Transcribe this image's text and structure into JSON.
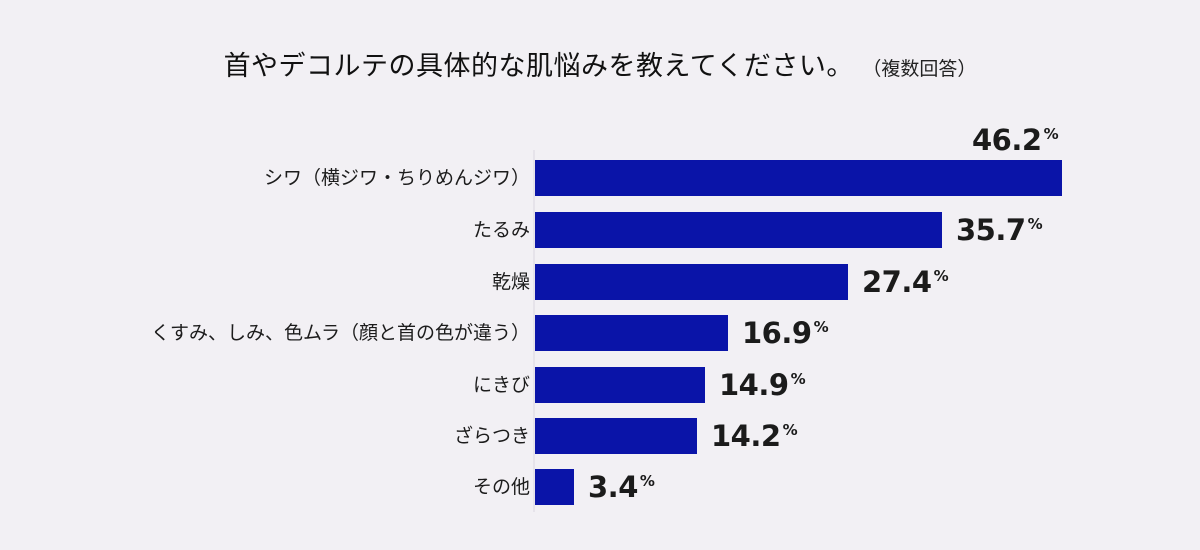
{
  "title": {
    "main": "首やデコルテの具体的な肌悩みを教えてください。",
    "sub": "（複数回答）"
  },
  "colors": {
    "bar": "#0a14a8",
    "background": "#f2f0f4"
  },
  "rows": [
    {
      "label": "シワ（横ジワ・ちりめんジワ）",
      "value": "46.2",
      "unit": "%"
    },
    {
      "label": "たるみ",
      "value": "35.7",
      "unit": "%"
    },
    {
      "label": "乾燥",
      "value": "27.4",
      "unit": "%"
    },
    {
      "label": "くすみ、しみ、色ムラ（顔と首の色が違う）",
      "value": "16.9",
      "unit": "%"
    },
    {
      "label": "にきび",
      "value": "14.9",
      "unit": "%"
    },
    {
      "label": "ざらつき",
      "value": "14.2",
      "unit": "%"
    },
    {
      "label": "その他",
      "value": "3.4",
      "unit": "%"
    }
  ],
  "chart_data": {
    "type": "bar",
    "orientation": "horizontal",
    "title": "首やデコルテの具体的な肌悩みを教えてください。（複数回答）",
    "categories": [
      "シワ（横ジワ・ちりめんジワ）",
      "たるみ",
      "乾燥",
      "くすみ、しみ、色ムラ（顔と首の色が違う）",
      "にきび",
      "ざらつき",
      "その他"
    ],
    "values": [
      46.2,
      35.7,
      27.4,
      16.9,
      14.9,
      14.2,
      3.4
    ],
    "unit": "%",
    "xlabel": "",
    "ylabel": "",
    "xlim": [
      0,
      46.2
    ],
    "grid": false,
    "legend": null,
    "data_labels": true
  }
}
